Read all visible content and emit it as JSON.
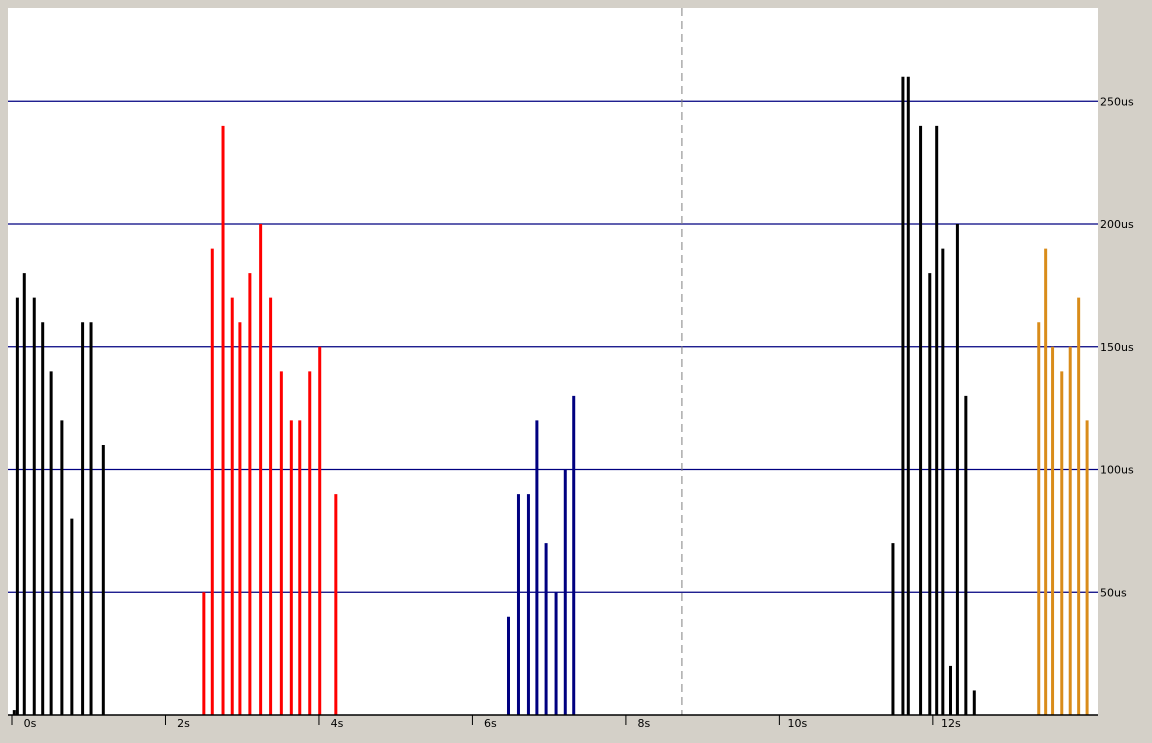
{
  "chart_data": {
    "type": "bar",
    "title": "",
    "xlabel": "",
    "ylabel": "",
    "xlim": [
      0,
      14.1
    ],
    "ylim": [
      0,
      288
    ],
    "x_ticks": [
      "0s",
      "2s",
      "4s",
      "6s",
      "8s",
      "10s",
      "12s"
    ],
    "x_tick_values": [
      0,
      2,
      4,
      6,
      8,
      10,
      12
    ],
    "y_ticks": [
      "50us",
      "100us",
      "150us",
      "200us",
      "250us"
    ],
    "y_tick_values": [
      50,
      100,
      150,
      200,
      250
    ],
    "grid": "horizontal",
    "legend": "none",
    "marker_time": 8.73,
    "colors": {
      "plot_bg": "#ffffff",
      "frame_bg": "#d4d0c8",
      "grid": "#000080",
      "marker": "#808080",
      "axis": "#000000"
    },
    "series": [
      {
        "color": "#000000",
        "x": [
          0.03,
          0.07,
          0.16,
          0.29,
          0.4,
          0.51,
          0.65,
          0.78,
          0.92,
          1.03,
          1.19
        ],
        "values": [
          2,
          170,
          180,
          170,
          160,
          140,
          120,
          80,
          160,
          160,
          110
        ]
      },
      {
        "color": "#ff0000",
        "x": [
          2.5,
          2.61,
          2.75,
          2.87,
          2.97,
          3.1,
          3.24,
          3.37,
          3.51,
          3.64,
          3.75,
          3.88,
          4.01,
          4.22
        ],
        "values": [
          50,
          190,
          240,
          170,
          160,
          180,
          200,
          170,
          140,
          120,
          120,
          140,
          150,
          90
        ]
      },
      {
        "color": "#000080",
        "x": [
          6.47,
          6.6,
          6.73,
          6.84,
          6.96,
          7.09,
          7.21,
          7.32
        ],
        "values": [
          40,
          90,
          90,
          120,
          70,
          50,
          100,
          130
        ]
      },
      {
        "color": "#000000",
        "x": [
          11.48,
          11.61,
          11.68,
          11.84,
          11.96,
          12.05,
          12.13,
          12.23,
          12.32,
          12.43,
          12.54
        ],
        "values": [
          70,
          260,
          260,
          240,
          180,
          240,
          190,
          20,
          200,
          130,
          10
        ]
      },
      {
        "color": "#d98c1a",
        "x": [
          13.38,
          13.47,
          13.56,
          13.68,
          13.79,
          13.9,
          14.01
        ],
        "values": [
          160,
          190,
          150,
          140,
          150,
          170,
          120
        ]
      }
    ]
  }
}
